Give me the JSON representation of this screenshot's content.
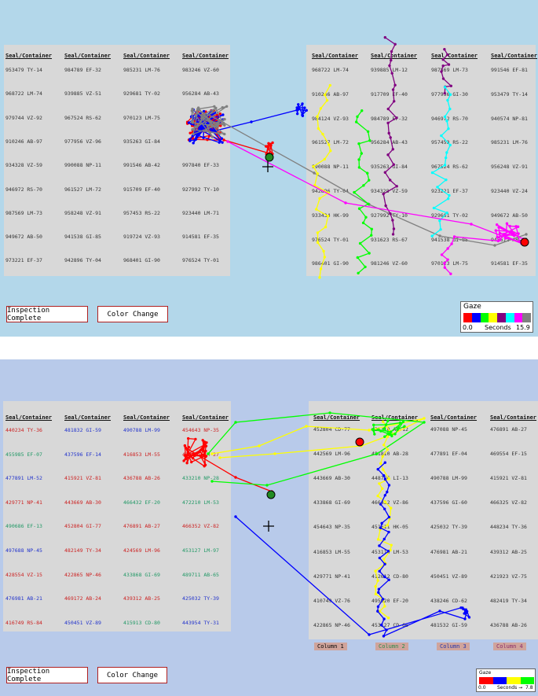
{
  "header": "Seal/Container",
  "buttons": {
    "inspection": "Inspection Complete",
    "color_change": "Color Change"
  },
  "top": {
    "left_cells": [
      [
        "953479 TY-14",
        "968722 LM-74",
        "979744 VZ-92",
        "910246 AB-97",
        "934328 VZ-59",
        "946972 RS-70",
        "987569 LM-73",
        "949672 AB-50",
        "973221 EF-37"
      ],
      [
        "984789 EF-32",
        "939885 VZ-51",
        "967524 RS-62",
        "977956 VZ-96",
        "990088 NP-11",
        "961527 LM-72",
        "958248 VZ-91",
        "941538 GI-85",
        "942896 TY-04"
      ],
      [
        "985231 LM-76",
        "929681 TY-02",
        "970123 LM-75",
        "935263 GI-84",
        "991546 AB-42",
        "915709 EF-40",
        "957453 RS-22",
        "919724 VZ-93",
        "968401 GI-90"
      ],
      [
        "983246 VZ-60",
        "956284 AB-43",
        "",
        "",
        "997840 EF-33",
        "927992 TY-10",
        "923440 LM-71",
        "914581 EF-35",
        "976524 TY-01"
      ]
    ],
    "right_cells": [
      [
        "968722 LM-74",
        "910246 AB-97",
        "984124 VZ-93",
        "961527 LM-72",
        "990088 NP-11",
        "942896 TY-04",
        "933434 HK-99",
        "976524 TY-01",
        "986401 GI-90"
      ],
      [
        "939885 LM-12",
        "917709 EF-40",
        "984789 EF-32",
        "956284 AB-43",
        "935263 GI-84",
        "934328 VZ-59",
        "927992 TY-10",
        "931623 RS-67",
        "981246 VZ-60"
      ],
      [
        "987569 LM-73",
        "977956 GI-30",
        "946972 RS-70",
        "957453 RS-22",
        "967524 RS-62",
        "923221 EF-37",
        "929661 TY-02",
        "941538 GI-85",
        "970123 LM-75"
      ],
      [
        "991546 EF-81",
        "953479 TY-14",
        "940574 NP-81",
        "985231 LM-76",
        "956248 VZ-91",
        "923440 VZ-24",
        "949672 AB-50",
        "945612 AB-42",
        "914581 EF-35"
      ]
    ],
    "legend": {
      "title": "Gaze",
      "lo": "0.0",
      "mid": "Seconds",
      "hi": "15.9",
      "colors": [
        "#ff0000",
        "#0000ff",
        "#00ff00",
        "#ffff00",
        "#800080",
        "#00ffff",
        "#ff00ff",
        "#808080"
      ]
    }
  },
  "bottom": {
    "left_cells": [
      [
        "440234 TY-36",
        "455985 EF-07",
        "477891 LM-52",
        "429771 NP-41",
        "490686 EF-13",
        "497688 NP-45",
        "428554 VZ-15",
        "476981 AB-21",
        "416749 RS-84"
      ],
      [
        "481832 GI-59",
        "437596 EF-14",
        "415921 VZ-81",
        "443669 AB-30",
        "452804 GI-77",
        "482149 TY-34",
        "422865 NP-46",
        "469172 AB-24",
        "450451 VZ-89"
      ],
      [
        "490788 LM-99",
        "416853 LM-55",
        "436788 AB-26",
        "466432 EF-20",
        "476891 AB-27",
        "424569 LM-96",
        "433868 GI-69",
        "439312 AB-25",
        "415913 CD-80"
      ],
      [
        "454643 NP-35",
        "419261 LM-27",
        "433210 NP-28",
        "472210 LM-53",
        "466352 VZ-82",
        "453127 LM-97",
        "489711 AB-65",
        "425032 TY-39",
        "443954 TY-31"
      ]
    ],
    "left_colors": [
      [
        "#cc2222",
        "#229966",
        "#2233cc",
        "#cc2222",
        "#229966",
        "#2233cc",
        "#cc2222",
        "#2233cc",
        "#cc2222"
      ],
      [
        "#2233cc",
        "#2233cc",
        "#cc2222",
        "#cc2222",
        "#cc2222",
        "#cc2222",
        "#cc2222",
        "#cc2222",
        "#2233cc"
      ],
      [
        "#2233cc",
        "#cc2222",
        "#cc2222",
        "#229966",
        "#cc2222",
        "#cc2222",
        "#229966",
        "#cc2222",
        "#229966"
      ],
      [
        "#cc2222",
        "#cc2222",
        "#229966",
        "#229966",
        "#cc2222",
        "#229966",
        "#229966",
        "#2233cc",
        "#2233cc"
      ]
    ],
    "right_cells": [
      [
        "452804 CD-77",
        "442569 LM-96",
        "443669 AB-30",
        "433868 GI-69",
        "454643 NP-35",
        "416853 LM-55",
        "429771 NP-41",
        "410749 VZ-76",
        "422865 NP-46"
      ],
      [
        "421310 AB-12",
        "481810 AB-28",
        "448786 LI-13",
        "466432 VZ-86",
        "451611 HK-05",
        "453110 LM-53",
        "412612 CD-80",
        "495920 EF-20",
        "453127 CD-66"
      ],
      [
        "497088 NP-45",
        "477891 EF-04",
        "490788 LM-99",
        "437596 GI-60",
        "425032 TY-39",
        "476981 AB-21",
        "450451 VZ-89",
        "438246 CD-62",
        "481532 GI-59"
      ],
      [
        "476891 AB-27",
        "469554 EF-15",
        "415921 VZ-81",
        "466325 VZ-82",
        "448234 TY-36",
        "439312 AB-25",
        "421923 VZ-75",
        "482419 TY-34",
        "436788 AB-26"
      ]
    ],
    "column_labels": [
      "Column 1",
      "Column 2",
      "Column 3",
      "Column 4"
    ],
    "legend": {
      "title": "Gaze",
      "lo": "0.0",
      "mid": "Seconds →",
      "hi": "7.8",
      "colors": [
        "#ff0000",
        "#0000ff",
        "#ffff00",
        "#00ff00"
      ]
    }
  }
}
